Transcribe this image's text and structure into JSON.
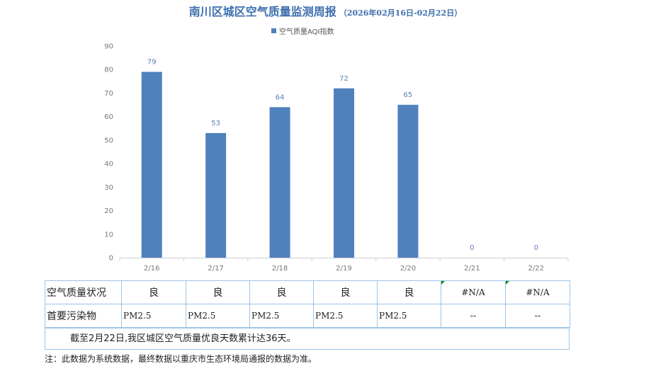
{
  "header": {
    "title": "南川区城区空气质量监测周报",
    "subtitle": "（2026年02月16日-02月22日）"
  },
  "legend": {
    "label": "空气质量AQI指数",
    "color": "#4f81bd"
  },
  "chart_data": {
    "type": "bar",
    "categories": [
      "2/16",
      "2/17",
      "2/18",
      "2/19",
      "2/20",
      "2/21",
      "2/22"
    ],
    "series": [
      {
        "name": "空气质量AQI指数",
        "values": [
          79,
          53,
          64,
          72,
          65,
          0,
          0
        ]
      }
    ],
    "ylim": [
      0,
      90
    ],
    "yticks": [
      0,
      10,
      20,
      30,
      40,
      50,
      60,
      70,
      80,
      90
    ],
    "grid": false,
    "legend_position": "top-center",
    "bar_color": "#4f81bd"
  },
  "table": {
    "quality_label": "空气质量状况",
    "quality": [
      "良",
      "良",
      "良",
      "良",
      "良",
      "#N/A",
      "#N/A"
    ],
    "pollutant_label": "首要污染物",
    "pollutant": [
      "PM2.5",
      "PM2.5",
      "PM2.5",
      "PM2.5",
      "PM2.5",
      "--",
      "--"
    ]
  },
  "summary": "截至2月22日,我区城区空气质量优良天数累计达36天。",
  "note": "注：此数据为系统数据，最终数据以重庆市生态环境局通报的数据为准。"
}
